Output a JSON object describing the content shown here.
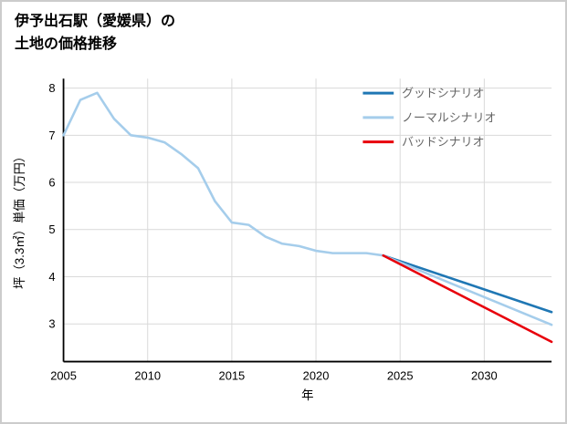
{
  "title": {
    "line1": "伊予出石駅（愛媛県）の",
    "line2": "土地の価格推移"
  },
  "chart_data": {
    "type": "line",
    "title": "伊予出石駅（愛媛県）の土地の価格推移",
    "xlabel": "年",
    "ylabel": "坪（3.3㎡）単価（万円）",
    "xlim": [
      2005,
      2034
    ],
    "ylim": [
      2.2,
      8.2
    ],
    "xticks": [
      2005,
      2010,
      2015,
      2020,
      2025,
      2030
    ],
    "yticks": [
      3,
      4,
      5,
      6,
      7,
      8
    ],
    "grid": true,
    "legend_position": "upper right",
    "series": [
      {
        "id": "historical",
        "name": "",
        "color": "#a5cdeb",
        "x": [
          2005,
          2006,
          2007,
          2008,
          2009,
          2010,
          2011,
          2012,
          2013,
          2014,
          2015,
          2016,
          2017,
          2018,
          2019,
          2020,
          2021,
          2022,
          2023,
          2024
        ],
        "values": [
          7.0,
          7.75,
          7.9,
          7.35,
          7.0,
          6.95,
          6.85,
          6.6,
          6.3,
          5.6,
          5.15,
          5.1,
          4.85,
          4.7,
          4.65,
          4.55,
          4.5,
          4.5,
          4.5,
          4.45
        ]
      },
      {
        "id": "good-scenario",
        "name": "グッドシナリオ",
        "color": "#1f77b4",
        "x": [
          2024,
          2034
        ],
        "values": [
          4.45,
          3.25
        ]
      },
      {
        "id": "normal-scenario",
        "name": "ノーマルシナリオ",
        "color": "#a5cdeb",
        "x": [
          2024,
          2034
        ],
        "values": [
          4.45,
          2.98
        ]
      },
      {
        "id": "bad-scenario",
        "name": "バッドシナリオ",
        "color": "#e8000b",
        "x": [
          2024,
          2034
        ],
        "values": [
          4.45,
          2.62
        ]
      }
    ]
  },
  "colors": {
    "grid": "#d9d9d9",
    "axis": "#000000",
    "legend_text": "#666666",
    "border": "#cccccc",
    "background": "#ffffff"
  }
}
